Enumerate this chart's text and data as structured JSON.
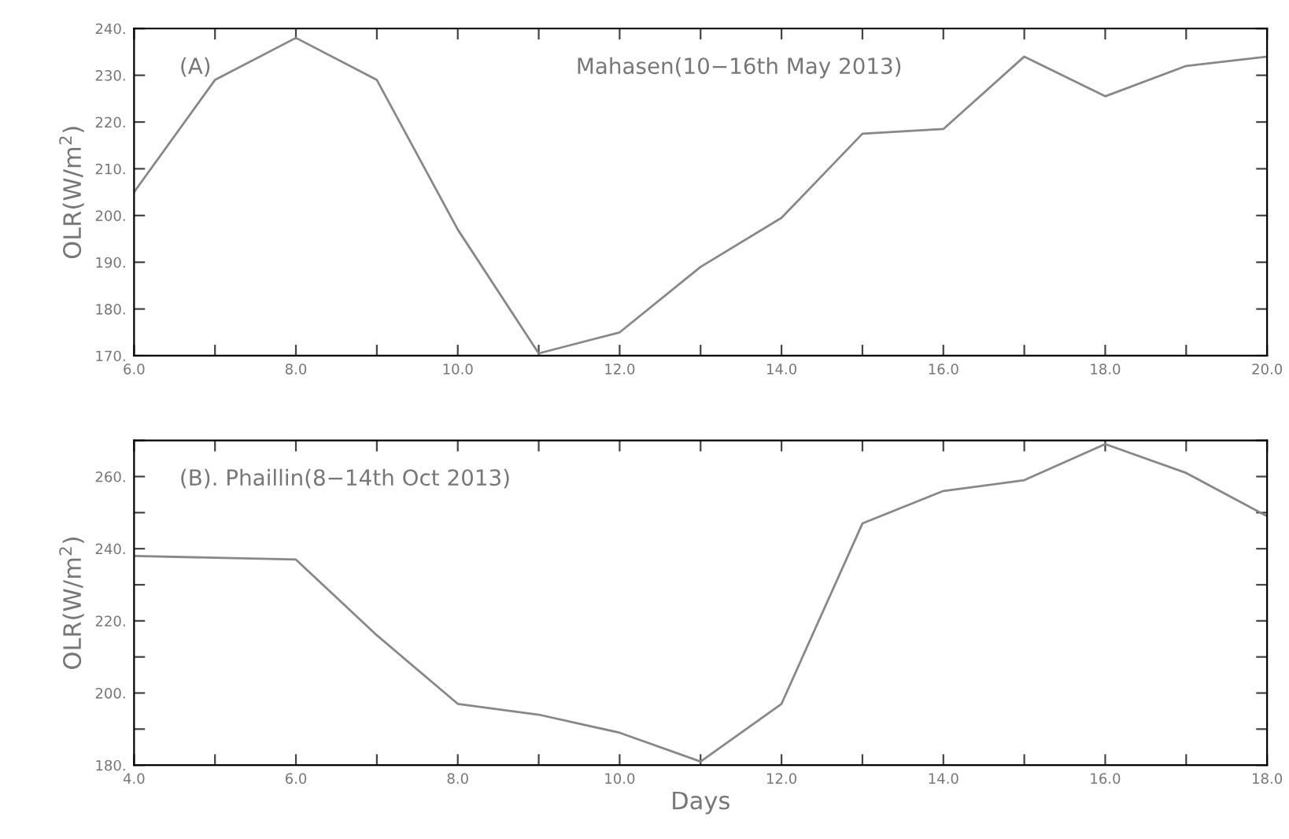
{
  "chart_data": [
    {
      "type": "line",
      "ylabel": "OLR(W/m$^{2}$)",
      "x": [
        6,
        7,
        8,
        9,
        10,
        11,
        12,
        13,
        14,
        15,
        16,
        17,
        18,
        19,
        20
      ],
      "series": [
        {
          "color": "#888888",
          "values": [
            205,
            229,
            238,
            229,
            197,
            170.5,
            175,
            189,
            199.5,
            217.5,
            218.5,
            234,
            225.5,
            232,
            234
          ]
        }
      ],
      "annotations": [
        "(A)",
        "Mahasen(10−16th May 2013)"
      ],
      "xlim": [
        6,
        20
      ],
      "xticks": [
        {
          "value": 6,
          "label": "6.0"
        },
        {
          "value": 7,
          "label": null
        },
        {
          "value": 8,
          "label": "8.0"
        },
        {
          "value": 9,
          "label": null
        },
        {
          "value": 10,
          "label": "10.0"
        },
        {
          "value": 11,
          "label": null
        },
        {
          "value": 12,
          "label": "12.0"
        },
        {
          "value": 13,
          "label": null
        },
        {
          "value": 14,
          "label": "14.0"
        },
        {
          "value": 15,
          "label": null
        },
        {
          "value": 16,
          "label": "16.0"
        },
        {
          "value": 17,
          "label": null
        },
        {
          "value": 18,
          "label": "18.0"
        },
        {
          "value": 19,
          "label": null
        },
        {
          "value": 20,
          "label": "20.0"
        }
      ],
      "ylim": [
        170,
        240
      ],
      "yticks": [
        {
          "value": 170,
          "label": "170."
        },
        {
          "value": 180,
          "label": "180."
        },
        {
          "value": 190,
          "label": "190."
        },
        {
          "value": 200,
          "label": "200."
        },
        {
          "value": 210,
          "label": "210."
        },
        {
          "value": 220,
          "label": "220."
        },
        {
          "value": 230,
          "label": "230."
        },
        {
          "value": 240,
          "label": "240."
        }
      ],
      "grid": false,
      "legend": false
    },
    {
      "type": "line",
      "xlabel": "Days",
      "ylabel": "OLR(W/m$^{2}$)",
      "x": [
        4,
        5,
        6,
        7,
        8,
        9,
        10,
        11,
        12,
        13,
        14,
        15,
        16,
        17,
        18
      ],
      "series": [
        {
          "color": "#888888",
          "values": [
            238,
            237.5,
            237,
            216,
            197,
            194,
            189,
            181,
            197,
            247,
            256,
            259,
            269,
            261,
            249
          ]
        }
      ],
      "annotations": [
        "(B). Phaillin(8−14th Oct 2013)"
      ],
      "xlim": [
        4,
        18
      ],
      "xticks": [
        {
          "value": 4,
          "label": "4.0"
        },
        {
          "value": 5,
          "label": null
        },
        {
          "value": 6,
          "label": "6.0"
        },
        {
          "value": 7,
          "label": null
        },
        {
          "value": 8,
          "label": "8.0"
        },
        {
          "value": 9,
          "label": null
        },
        {
          "value": 10,
          "label": "10.0"
        },
        {
          "value": 11,
          "label": null
        },
        {
          "value": 12,
          "label": "12.0"
        },
        {
          "value": 13,
          "label": null
        },
        {
          "value": 14,
          "label": "14.0"
        },
        {
          "value": 15,
          "label": null
        },
        {
          "value": 16,
          "label": "16.0"
        },
        {
          "value": 17,
          "label": null
        },
        {
          "value": 18,
          "label": "18.0"
        }
      ],
      "ylim": [
        180,
        270
      ],
      "yticks": [
        {
          "value": 180,
          "label": "180."
        },
        {
          "value": 190,
          "label": null
        },
        {
          "value": 200,
          "label": "200."
        },
        {
          "value": 210,
          "label": null
        },
        {
          "value": 220,
          "label": "220."
        },
        {
          "value": 230,
          "label": null
        },
        {
          "value": 240,
          "label": "240."
        },
        {
          "value": 250,
          "label": null
        },
        {
          "value": 260,
          "label": "260."
        },
        {
          "value": 270,
          "label": null
        }
      ],
      "grid": false,
      "legend": false
    }
  ]
}
